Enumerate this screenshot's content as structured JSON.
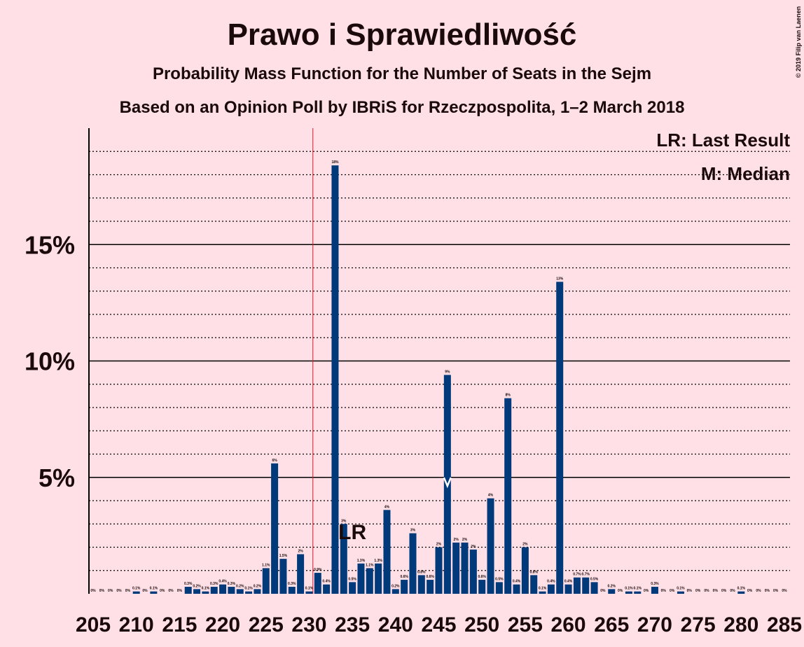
{
  "chart_data": {
    "type": "bar",
    "title": "Prawo i Sprawiedliwość",
    "subtitle": "Probability Mass Function for the Number of Seats in the Sejm",
    "subtitle2": "Based on an Opinion Poll by IBRiS for Rzeczpospolita, 1–2 March 2018",
    "copyright": "© 2019 Filip van Laenen",
    "categories": [
      205,
      206,
      207,
      208,
      209,
      210,
      211,
      212,
      213,
      214,
      215,
      216,
      217,
      218,
      219,
      220,
      221,
      222,
      223,
      224,
      225,
      226,
      227,
      228,
      229,
      230,
      231,
      232,
      233,
      234,
      235,
      236,
      237,
      238,
      239,
      240,
      241,
      242,
      243,
      244,
      245,
      246,
      247,
      248,
      249,
      250,
      251,
      252,
      253,
      254,
      255,
      256,
      257,
      258,
      259,
      260,
      261,
      262,
      263,
      264,
      265,
      266,
      267,
      268,
      269,
      270,
      271,
      272,
      273,
      274,
      275,
      276,
      277,
      278,
      279,
      280,
      281,
      282,
      283,
      284,
      285
    ],
    "values": [
      0,
      0,
      0,
      0,
      0,
      0.1,
      0,
      0.1,
      0,
      0,
      0,
      0.3,
      0.2,
      0.1,
      0.3,
      0.4,
      0.3,
      0.2,
      0.1,
      0.2,
      1.1,
      5.6,
      1.5,
      0.3,
      1.7,
      0.1,
      0.9,
      0.4,
      18.4,
      3.0,
      0.5,
      1.3,
      1.1,
      1.3,
      3.6,
      0.2,
      0.6,
      2.6,
      0.8,
      0.6,
      2.0,
      9.4,
      2.2,
      2.2,
      1.9,
      0.6,
      4.1,
      0.5,
      8.4,
      0.4,
      2.0,
      0.8,
      0.1,
      0.4,
      13.4,
      0.4,
      0.7,
      0.7,
      0.5,
      0,
      0.2,
      0,
      0.1,
      0.1,
      0,
      0.3,
      0,
      0,
      0.1,
      0,
      0,
      0,
      0,
      0,
      0,
      0.1,
      0,
      0,
      0,
      0,
      0
    ],
    "value_labels": [
      "0%",
      "0%",
      "0%",
      "0%",
      "0%",
      "0.1%",
      "0%",
      "0.1%",
      "0%",
      "0%",
      "0%",
      "0.3%",
      "0.2%",
      "0.1%",
      "0.3%",
      "0.4%",
      "0.3%",
      "0.2%",
      "0.1%",
      "0.2%",
      "1.1%",
      "6%",
      "1.5%",
      "0.3%",
      "2%",
      "0.1%",
      "0.9%",
      "0.4%",
      "18%",
      "3%",
      "0.5%",
      "1.3%",
      "1.1%",
      "1.3%",
      "4%",
      "0.2%",
      "0.6%",
      "3%",
      "0.8%",
      "0.6%",
      "2%",
      "9%",
      "2%",
      "2%",
      "2%",
      "0.6%",
      "4%",
      "0.5%",
      "8%",
      "0.4%",
      "2%",
      "0.8%",
      "0.1%",
      "0.4%",
      "13%",
      "0.4%",
      "0.7%",
      "0.7%",
      "0.5%",
      "0%",
      "0.2%",
      "0%",
      "0.1%",
      "0.1%",
      "0%",
      "0.3%",
      "0%",
      "0%",
      "0.1%",
      "0%",
      "0%",
      "0%",
      "0%",
      "0%",
      "0%",
      "0.1%",
      "0%",
      "0%",
      "0%",
      "0%",
      "0%"
    ],
    "color": "#003a7a",
    "ylim": [
      0,
      20
    ],
    "yticks": [
      {
        "value": 5,
        "label": "5%"
      },
      {
        "value": 10,
        "label": "10%"
      },
      {
        "value": 15,
        "label": "15%"
      }
    ],
    "minor_yticks": [
      1,
      2,
      3,
      4,
      6,
      7,
      8,
      9,
      11,
      12,
      13,
      14,
      16,
      17,
      18,
      19
    ],
    "xtick_every": 5,
    "majority": 231,
    "last_result": 235,
    "last_result_label": "LR",
    "median": 246,
    "legend": [
      "LR: Last Result",
      "M: Median"
    ]
  }
}
